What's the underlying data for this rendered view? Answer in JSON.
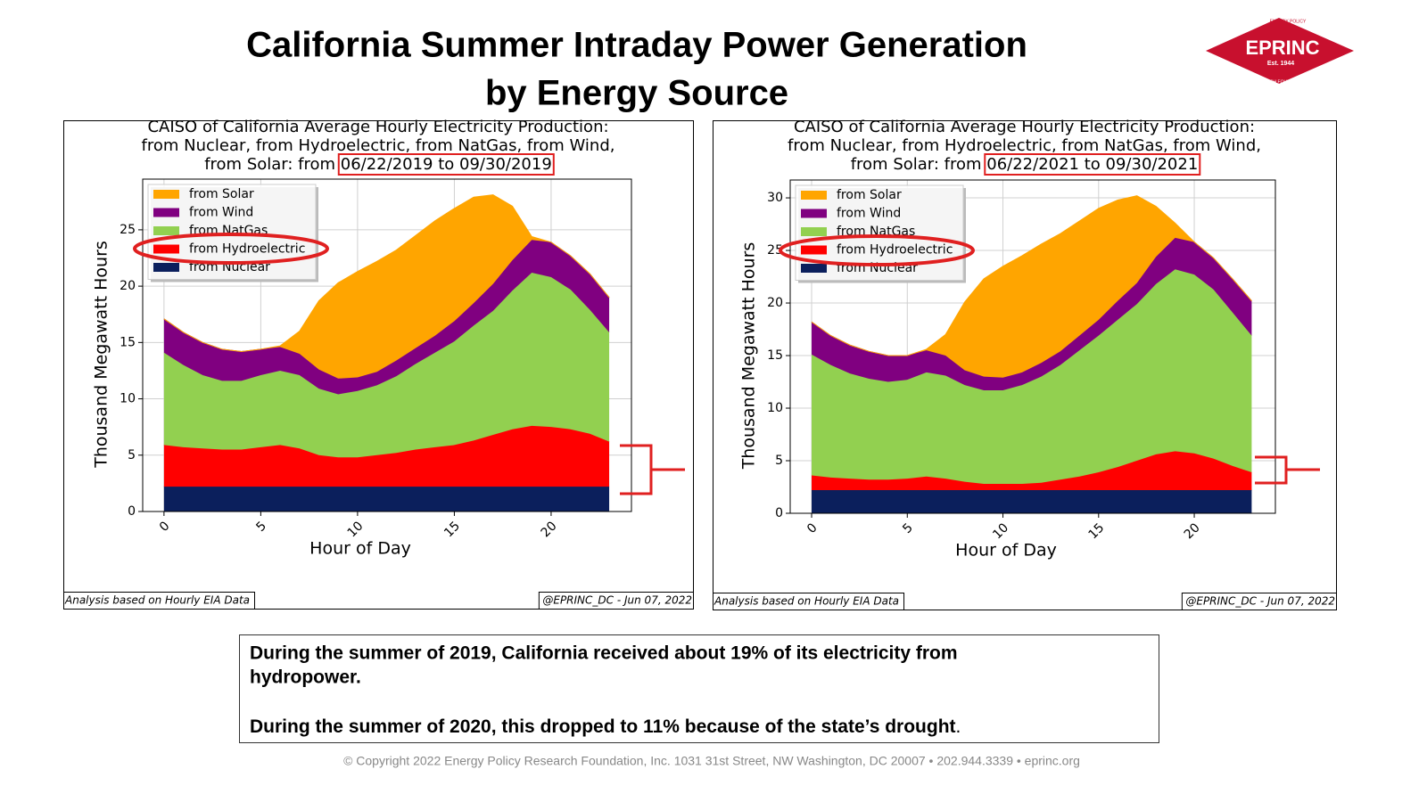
{
  "title": [
    "California Summer Intraday Power Generation",
    "by Energy Source"
  ],
  "logo": {
    "name": "EPRINC",
    "est": "Est. 1944",
    "top": "ENERGY POLICY",
    "bottom": "RESEARCH FOUNDATION INC."
  },
  "note": [
    "During the summer of 2019, California received about 19% of its electricity from",
    "hydropower.",
    "During the summer of 2020, this dropped to 11% because of the state’s drought",
    "."
  ],
  "copyright": "© Copyright 2022 Energy Policy Research Foundation, Inc. 1031 31st Street, NW Washington, DC 20007 • 202.944.3339 • eprinc.org",
  "chart_data": [
    {
      "type": "stacked_area",
      "title": [
        "CAISO of California Average Hourly Electricity Production:",
        "from Nuclear, from Hydroelectric, from NatGas, from Wind,",
        "from Solar: from "
      ],
      "title_dates": "06/22/2019 to 09/30/2019",
      "x_label": "Hour of Day",
      "y_label": "Thousand Megawatt Hours",
      "source_left": "Analysis based on Hourly EIA Data",
      "source_right": "@EPRINC_DC - Jun 07, 2022",
      "legend": "upper left",
      "grid": true,
      "xlim": [
        -1.1,
        24.15
      ],
      "ylim": [
        0,
        29.5
      ],
      "xticks": [
        0,
        5,
        10,
        15,
        20
      ],
      "yticks": [
        0,
        5,
        10,
        15,
        20,
        25
      ],
      "x": [
        0,
        1,
        2,
        3,
        4,
        5,
        6,
        7,
        8,
        9,
        10,
        11,
        12,
        13,
        14,
        15,
        16,
        17,
        18,
        19,
        20,
        21,
        22,
        23
      ],
      "series": [
        {
          "name": "from Nuclear",
          "color": "#0b1f5c",
          "values": [
            2.2,
            2.2,
            2.2,
            2.2,
            2.2,
            2.2,
            2.2,
            2.2,
            2.2,
            2.2,
            2.2,
            2.2,
            2.2,
            2.2,
            2.2,
            2.2,
            2.2,
            2.2,
            2.2,
            2.2,
            2.2,
            2.2,
            2.2,
            2.2
          ]
        },
        {
          "name": "from Hydroelectric",
          "color": "#ff0000",
          "values": [
            3.7,
            3.5,
            3.4,
            3.3,
            3.3,
            3.5,
            3.7,
            3.4,
            2.8,
            2.6,
            2.6,
            2.8,
            3.0,
            3.3,
            3.5,
            3.7,
            4.1,
            4.6,
            5.1,
            5.4,
            5.3,
            5.1,
            4.7,
            4.0
          ]
        },
        {
          "name": "from NatGas",
          "color": "#92d050",
          "values": [
            8.2,
            7.3,
            6.5,
            6.1,
            6.1,
            6.4,
            6.6,
            6.5,
            5.9,
            5.6,
            5.9,
            6.2,
            6.8,
            7.6,
            8.4,
            9.2,
            10.2,
            11.0,
            12.3,
            13.6,
            13.3,
            12.4,
            11.0,
            9.7
          ]
        },
        {
          "name": "from Wind",
          "color": "#800080",
          "values": [
            3.0,
            2.9,
            2.9,
            2.8,
            2.6,
            2.3,
            2.1,
            1.9,
            1.7,
            1.4,
            1.2,
            1.2,
            1.4,
            1.4,
            1.5,
            1.8,
            2.0,
            2.4,
            2.7,
            2.9,
            3.1,
            3.0,
            3.2,
            3.1
          ]
        },
        {
          "name": "from Solar",
          "color": "#ffa500",
          "values": [
            0,
            0,
            0,
            0,
            0,
            0,
            0.1,
            2.0,
            6.1,
            8.5,
            9.4,
            9.8,
            9.8,
            10.0,
            10.2,
            10.0,
            9.4,
            7.9,
            4.8,
            0.3,
            0,
            0,
            0,
            0
          ]
        }
      ]
    },
    {
      "type": "stacked_area",
      "title": [
        "CAISO of California Average Hourly Electricity Production:",
        "from Nuclear, from Hydroelectric, from NatGas, from Wind,",
        "from Solar: from "
      ],
      "title_dates": "06/22/2021 to 09/30/2021",
      "x_label": "Hour of Day",
      "y_label": "Thousand Megawatt Hours",
      "source_left": "Analysis based on Hourly EIA Data",
      "source_right": "@EPRINC_DC - Jun 07, 2022",
      "legend": "upper left",
      "grid": true,
      "xlim": [
        -1.12,
        24.24
      ],
      "ylim": [
        0,
        31.7
      ],
      "xticks": [
        0,
        5,
        10,
        15,
        20
      ],
      "yticks": [
        0,
        5,
        10,
        15,
        20,
        25,
        30
      ],
      "x": [
        0,
        1,
        2,
        3,
        4,
        5,
        6,
        7,
        8,
        9,
        10,
        11,
        12,
        13,
        14,
        15,
        16,
        17,
        18,
        19,
        20,
        21,
        22,
        23
      ],
      "series": [
        {
          "name": "from Nuclear",
          "color": "#0b1f5c",
          "values": [
            2.2,
            2.2,
            2.2,
            2.2,
            2.2,
            2.2,
            2.2,
            2.2,
            2.2,
            2.2,
            2.2,
            2.2,
            2.2,
            2.2,
            2.2,
            2.2,
            2.2,
            2.2,
            2.2,
            2.2,
            2.2,
            2.2,
            2.2,
            2.2
          ]
        },
        {
          "name": "from Hydroelectric",
          "color": "#ff0000",
          "values": [
            1.4,
            1.2,
            1.1,
            1.0,
            1.0,
            1.1,
            1.3,
            1.1,
            0.8,
            0.6,
            0.6,
            0.6,
            0.7,
            1.0,
            1.3,
            1.7,
            2.2,
            2.8,
            3.4,
            3.7,
            3.5,
            3.0,
            2.3,
            1.7
          ]
        },
        {
          "name": "from NatGas",
          "color": "#92d050",
          "values": [
            11.5,
            10.7,
            10.0,
            9.6,
            9.3,
            9.4,
            9.9,
            9.8,
            9.2,
            8.9,
            8.9,
            9.4,
            10.1,
            10.9,
            12.0,
            13.0,
            14.0,
            14.9,
            16.2,
            17.3,
            17.0,
            16.1,
            14.6,
            13.0
          ]
        },
        {
          "name": "from Wind",
          "color": "#800080",
          "values": [
            3.1,
            2.8,
            2.7,
            2.6,
            2.5,
            2.3,
            2.1,
            1.9,
            1.4,
            1.3,
            1.2,
            1.2,
            1.3,
            1.3,
            1.4,
            1.5,
            1.8,
            2.0,
            2.6,
            3.0,
            3.1,
            3.0,
            3.2,
            3.3
          ]
        },
        {
          "name": "from Solar",
          "color": "#ffa500",
          "values": [
            0,
            0,
            0,
            0,
            0,
            0,
            0.1,
            2.0,
            6.5,
            9.3,
            10.6,
            11.1,
            11.3,
            11.2,
            10.9,
            10.6,
            9.6,
            8.3,
            4.8,
            1.4,
            0,
            0,
            0,
            0
          ]
        }
      ]
    }
  ]
}
